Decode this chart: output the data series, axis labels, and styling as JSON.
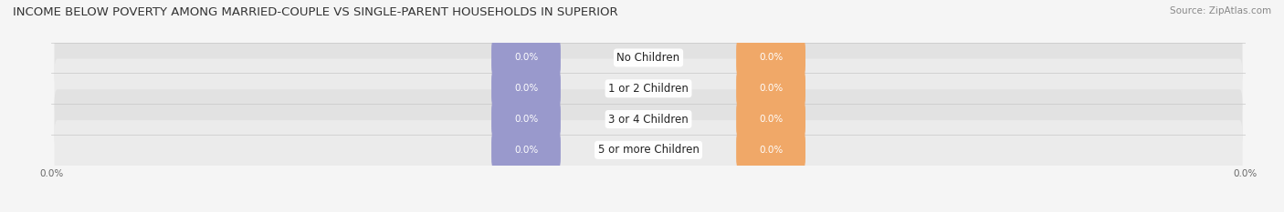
{
  "title": "INCOME BELOW POVERTY AMONG MARRIED-COUPLE VS SINGLE-PARENT HOUSEHOLDS IN SUPERIOR",
  "source": "Source: ZipAtlas.com",
  "categories": [
    "No Children",
    "1 or 2 Children",
    "3 or 4 Children",
    "5 or more Children"
  ],
  "married_values": [
    0.0,
    0.0,
    0.0,
    0.0
  ],
  "single_values": [
    0.0,
    0.0,
    0.0,
    0.0
  ],
  "married_color": "#9999cc",
  "single_color": "#f0a868",
  "title_fontsize": 9.5,
  "source_fontsize": 7.5,
  "label_fontsize": 7.5,
  "category_fontsize": 8.5,
  "tick_fontsize": 7.5,
  "row_bg_odd": "#ebebeb",
  "row_bg_even": "#e2e2e2",
  "fig_bg": "#f5f5f5"
}
